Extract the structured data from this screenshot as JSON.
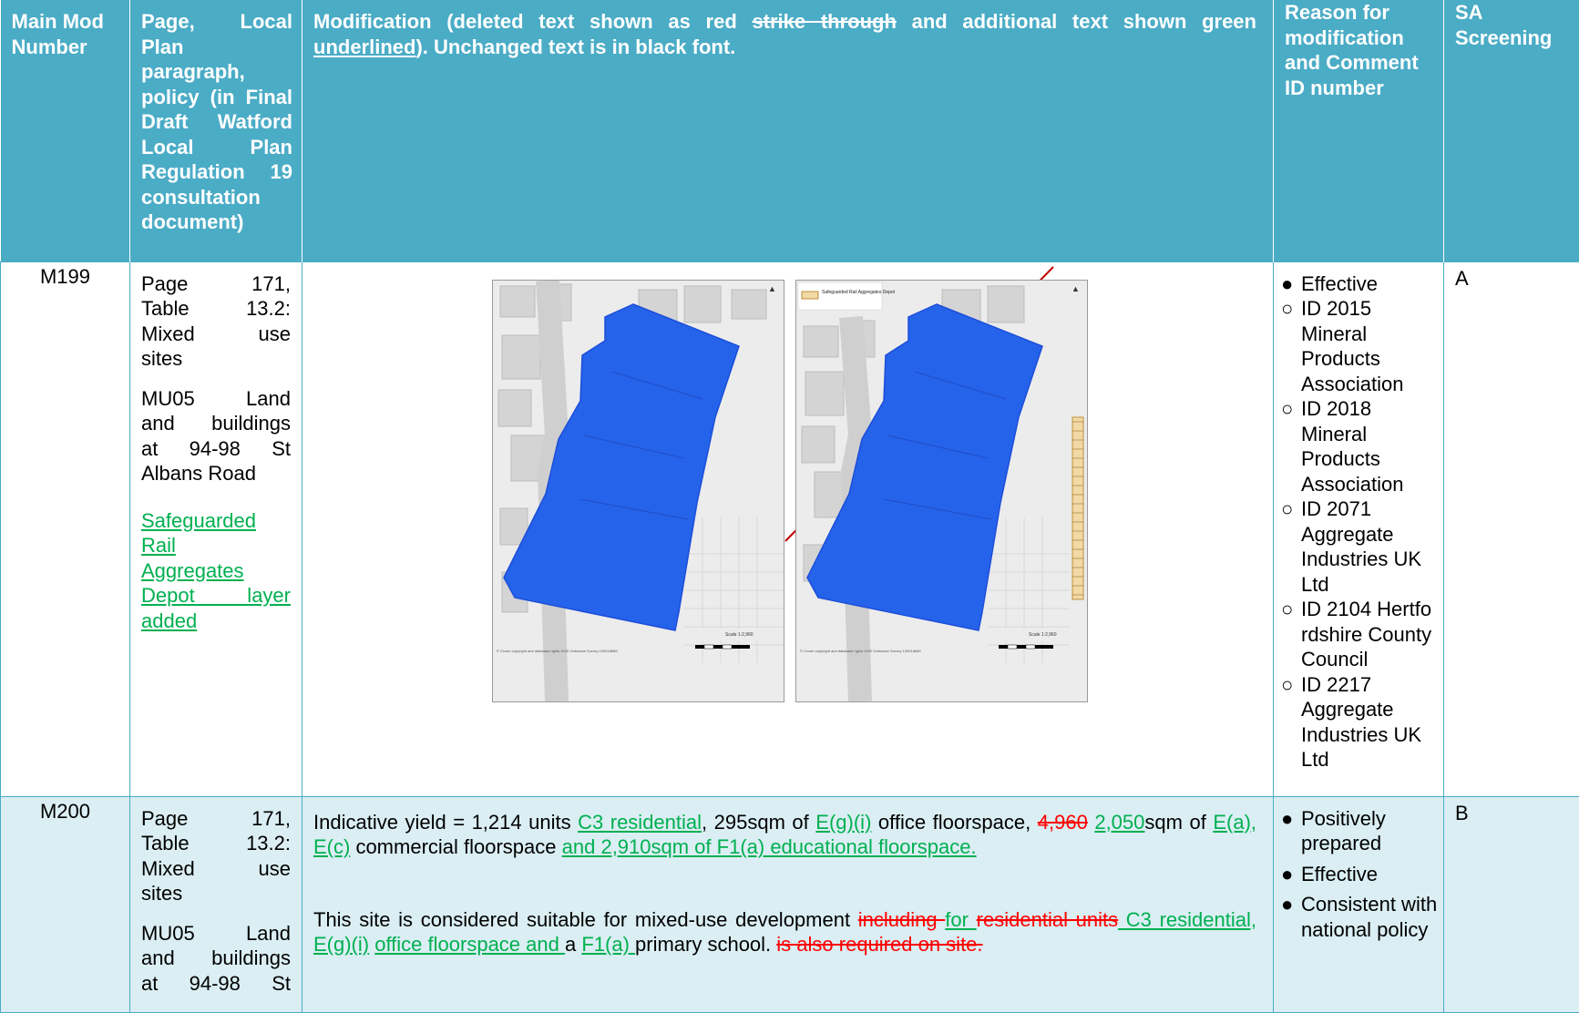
{
  "header": {
    "col1": "Main Mod Number",
    "col2": "Page, Local Plan paragraph, policy (in Final Draft Watford Local Plan Regulation 19 consultation document)",
    "col3_a": "Modification (deleted text shown as red ",
    "col3_strike": "strike through",
    "col3_b": " and additional text shown green ",
    "col3_underline": "underlined",
    "col3_c": "). Unchanged text is in black font.",
    "col4": "Reason for modification and Comment ID number",
    "col5": "SA Screening"
  },
  "rows": [
    {
      "mod": "M199",
      "page_lines": [
        "Page 171,",
        "Table 13.2:",
        "Mixed use",
        "sites"
      ],
      "site_lines": [
        "MU05 Land",
        "and buildings",
        "at 94-98 St",
        "Albans Road"
      ],
      "added_lines": [
        "Safeguarded",
        "Rail",
        "Aggregates",
        "Depot layer",
        "added"
      ],
      "map_left": {
        "scale": "Scale 1:2,960",
        "copyright": "© Crown copyright and database rights 2020 Ordnance Survey 100018689"
      },
      "map_right": {
        "legend_label": "Safeguarded Rail Aggregates Depot",
        "scale": "Scale 1:2,960",
        "copyright": "© Crown copyright and database rights 2020 Ordnance Survey 100018689"
      },
      "reasons": [
        "Effective"
      ],
      "comments": [
        "ID 2015 Mineral Products Association",
        "ID 2018 Mineral Products Association",
        "ID 2071 Aggregate Industries UK Ltd",
        "ID 2104 Hertfordshire County Council",
        "ID 2217 Aggregate Industries UK Ltd"
      ],
      "sa": "A"
    },
    {
      "mod": "M200",
      "page_lines": [
        "Page 171,",
        "Table 13.2:",
        "Mixed use",
        "sites"
      ],
      "site_lines": [
        "MU05 Land",
        "and buildings",
        "at 94-98 St"
      ],
      "p1": {
        "t1": "Indicative yield = 1,214 units ",
        "i1": "C3 residential",
        "t2": ", 295sqm of ",
        "i2": "E(g)(i)",
        "t3": " office floorspace, ",
        "d1": "4,960",
        "t4": " ",
        "i3": "2,050",
        "t5": "sqm of ",
        "i4": "E(a), E(c)",
        "t6": " commercial floorspace ",
        "i5": "and 2,910sqm of F1(a) educational floorspace."
      },
      "p2": {
        "t1": "This site is considered suitable for mixed-use development ",
        "d1": "including ",
        "i1": "for ",
        "d2": "residential units",
        "i2": " C3 residential, E(g)(i)",
        "t2": " ",
        "i3": "office floorspace and ",
        "t3": "a ",
        "i4": "F1(a) ",
        "t4": "primary school. ",
        "d3": " is also required on site."
      },
      "reasons": [
        "Positively prepared",
        "Effective",
        "Consistent with national policy"
      ],
      "sa": "B"
    }
  ],
  "colors": {
    "header_bg": "#4bacc6",
    "row2_bg": "#daeef3",
    "inserted": "#00b050",
    "deleted": "#ff0000",
    "site_fill": "#2563eb"
  }
}
